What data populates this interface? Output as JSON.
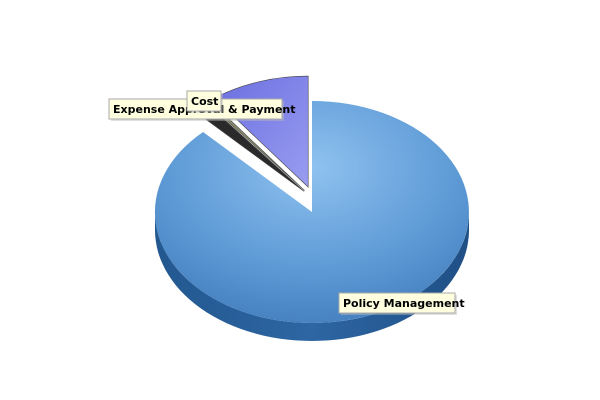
{
  "chart_data": {
    "type": "pie",
    "title": "",
    "three_d": true,
    "slices": [
      {
        "label": "Policy Management",
        "value": 87.8,
        "color": "#5b9bd5",
        "exploded": false
      },
      {
        "label": "Expense Approval & Payment",
        "value": 1.6,
        "color": "#2a2a2a",
        "exploded": true
      },
      {
        "label": "Cost",
        "value": 0.4,
        "color": "#8a8a6a",
        "exploded": true
      },
      {
        "label": "",
        "value": 10.2,
        "color": "#7b7fe0",
        "exploded": true
      }
    ],
    "label_style": {
      "background": "#ffffe0",
      "border": "#aaaaaa"
    }
  }
}
